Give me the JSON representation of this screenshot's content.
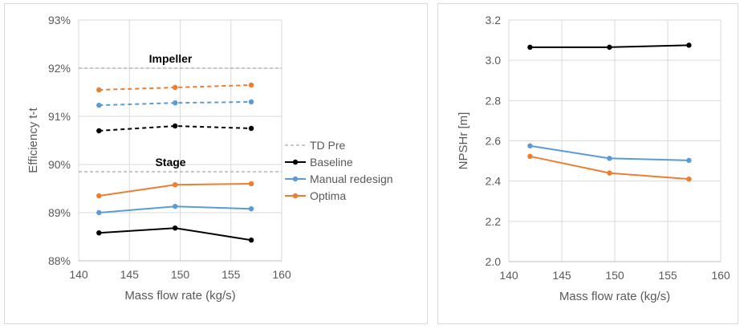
{
  "chart_data": [
    {
      "type": "line",
      "xlabel": "Mass flow rate (kg/s)",
      "ylabel": "Efficiency t-t",
      "xlim": [
        140,
        160
      ],
      "ylim": [
        88,
        93
      ],
      "xticks": [
        "140",
        "145",
        "150",
        "155",
        "160"
      ],
      "yticks": [
        "88%",
        "89%",
        "90%",
        "91%",
        "92%",
        "93%"
      ],
      "grid": true,
      "legend_position": "right",
      "annotations": [
        "Impeller",
        "Stage"
      ],
      "reference_lines": [
        {
          "name": "TD Pre",
          "y": 92.0,
          "label": "Impeller",
          "color": "#a6a6a6"
        },
        {
          "name": "TD Pre",
          "y": 89.85,
          "label": "Stage",
          "color": "#a6a6a6"
        }
      ],
      "legend": [
        "TD Pre",
        "Baseline",
        "Manual redesign",
        "Optima"
      ],
      "series": [
        {
          "name": "Baseline",
          "group": "Impeller",
          "dashed": true,
          "color": "#000000",
          "x": [
            142,
            149.5,
            157
          ],
          "y": [
            90.7,
            90.8,
            90.75
          ]
        },
        {
          "name": "Manual redesign",
          "group": "Impeller",
          "dashed": true,
          "color": "#5b9bd5",
          "x": [
            142,
            149.5,
            157
          ],
          "y": [
            91.23,
            91.28,
            91.3
          ]
        },
        {
          "name": "Optima",
          "group": "Impeller",
          "dashed": true,
          "color": "#ed7d31",
          "x": [
            142,
            149.5,
            157
          ],
          "y": [
            91.55,
            91.6,
            91.65
          ]
        },
        {
          "name": "Baseline",
          "group": "Stage",
          "dashed": false,
          "color": "#000000",
          "x": [
            142,
            149.5,
            157
          ],
          "y": [
            88.58,
            88.68,
            88.43
          ]
        },
        {
          "name": "Manual redesign",
          "group": "Stage",
          "dashed": false,
          "color": "#5b9bd5",
          "x": [
            142,
            149.5,
            157
          ],
          "y": [
            89.0,
            89.13,
            89.08
          ]
        },
        {
          "name": "Optima",
          "group": "Stage",
          "dashed": false,
          "color": "#ed7d31",
          "x": [
            142,
            149.5,
            157
          ],
          "y": [
            89.35,
            89.58,
            89.6
          ]
        }
      ]
    },
    {
      "type": "line",
      "xlabel": "Mass flow rate (kg/s)",
      "ylabel": "NPSHr [m]",
      "xlim": [
        140,
        160
      ],
      "ylim": [
        2.0,
        3.2
      ],
      "xticks": [
        "140",
        "145",
        "150",
        "155",
        "160"
      ],
      "yticks": [
        "2.0",
        "2.2",
        "2.4",
        "2.6",
        "2.8",
        "3.0",
        "3.2"
      ],
      "grid": true,
      "series": [
        {
          "name": "Baseline",
          "color": "#000000",
          "x": [
            142,
            149.5,
            157
          ],
          "y": [
            3.065,
            3.065,
            3.075
          ]
        },
        {
          "name": "Manual redesign",
          "color": "#5b9bd5",
          "x": [
            142,
            149.5,
            157
          ],
          "y": [
            2.575,
            2.513,
            2.503
          ]
        },
        {
          "name": "Optima",
          "color": "#ed7d31",
          "x": [
            142,
            149.5,
            157
          ],
          "y": [
            2.523,
            2.44,
            2.41
          ]
        }
      ]
    }
  ]
}
